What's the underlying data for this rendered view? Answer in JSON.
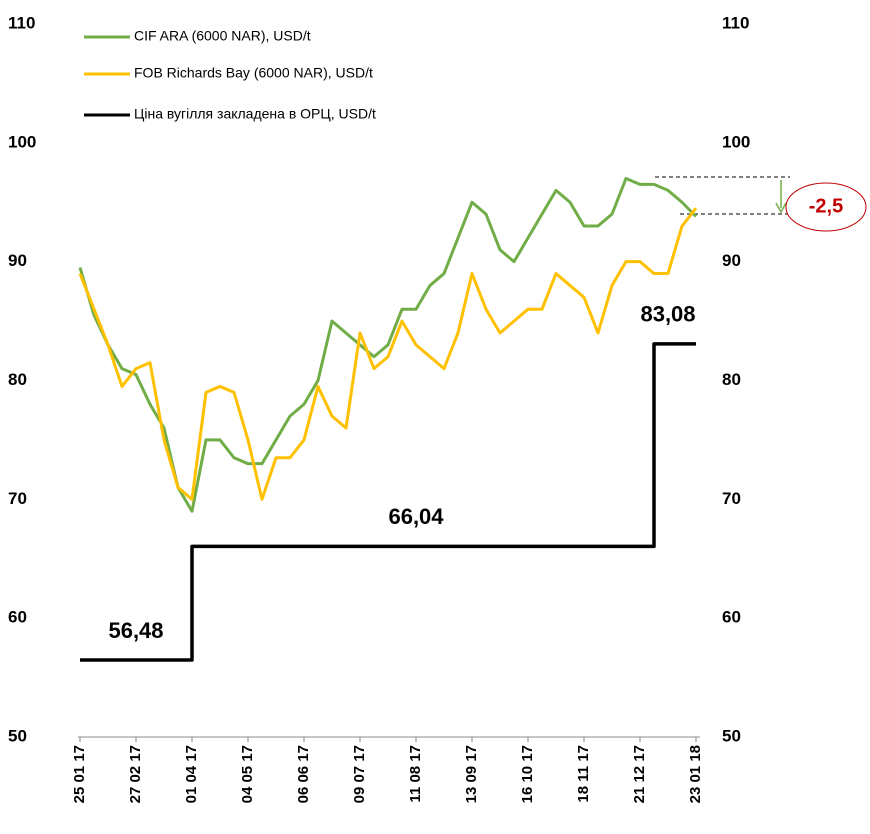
{
  "chart_data": {
    "type": "line",
    "categories": [
      "25 01 17",
      null,
      null,
      null,
      "27 02 17",
      null,
      null,
      null,
      "01 04 17",
      null,
      null,
      null,
      "04 05 17",
      null,
      null,
      null,
      "06 06 17",
      null,
      null,
      null,
      "09 07 17",
      null,
      null,
      null,
      "11 08 17",
      null,
      null,
      null,
      "13 09 17",
      null,
      null,
      null,
      "16 10 17",
      null,
      null,
      null,
      "18 11 17",
      null,
      null,
      null,
      "21 12 17",
      null,
      null,
      null,
      "23 01 18"
    ],
    "series": [
      {
        "name": "CIF ARA (6000 NAR), USD/t",
        "color": "#70ad47",
        "values": [
          89.5,
          85.5,
          83,
          81,
          80.5,
          78,
          76,
          71,
          69,
          75,
          75,
          73.5,
          73,
          73,
          75,
          77,
          78,
          80,
          85,
          84,
          83,
          82,
          83,
          86,
          86,
          88,
          89,
          92,
          95,
          94,
          91,
          90,
          92,
          94,
          96,
          95,
          93,
          93,
          94,
          97,
          96.5,
          96.5,
          96,
          95,
          93.8
        ]
      },
      {
        "name": "FOB Richards Bay (6000 NAR), USD/t",
        "color": "#ffc000",
        "values": [
          89,
          86,
          83,
          79.5,
          81,
          81.5,
          75,
          71,
          70,
          79,
          79.5,
          79,
          75,
          70,
          73.5,
          73.5,
          75,
          79.5,
          77,
          76,
          84,
          81,
          82,
          85,
          83,
          82,
          81,
          84,
          89,
          86,
          84,
          85,
          86,
          86,
          89,
          88,
          87,
          84,
          88,
          90,
          90,
          89,
          89,
          93,
          94.5
        ]
      },
      {
        "name": "Ціна вугілля закладена в ОРЦ, USD/t",
        "color": "#000000",
        "step": true,
        "values": [
          56.48,
          56.48,
          56.48,
          56.48,
          56.48,
          56.48,
          56.48,
          56.48,
          66.04,
          66.04,
          66.04,
          66.04,
          66.04,
          66.04,
          66.04,
          66.04,
          66.04,
          66.04,
          66.04,
          66.04,
          66.04,
          66.04,
          66.04,
          66.04,
          66.04,
          66.04,
          66.04,
          66.04,
          66.04,
          66.04,
          66.04,
          66.04,
          66.04,
          66.04,
          66.04,
          66.04,
          66.04,
          66.04,
          66.04,
          66.04,
          66.04,
          83.08,
          83.08,
          83.08,
          83.08
        ],
        "value_labels": [
          null,
          null,
          null,
          null,
          "56,48",
          null,
          null,
          null,
          null,
          null,
          null,
          null,
          null,
          null,
          null,
          null,
          null,
          null,
          null,
          null,
          null,
          null,
          null,
          null,
          "66,04",
          null,
          null,
          null,
          null,
          null,
          null,
          null,
          null,
          null,
          null,
          null,
          null,
          null,
          null,
          null,
          null,
          null,
          "83,08",
          null,
          null
        ]
      }
    ],
    "ylim": [
      50,
      110
    ],
    "yticks": [
      50,
      60,
      70,
      80,
      90,
      100,
      110
    ],
    "y2lim": [
      50,
      110
    ],
    "y2ticks": [
      50,
      60,
      70,
      80,
      90,
      100,
      110
    ],
    "grid": false,
    "legend": "top-left",
    "annotation": {
      "value": -2.5,
      "label": "-2,5",
      "color": "#c00000"
    }
  }
}
